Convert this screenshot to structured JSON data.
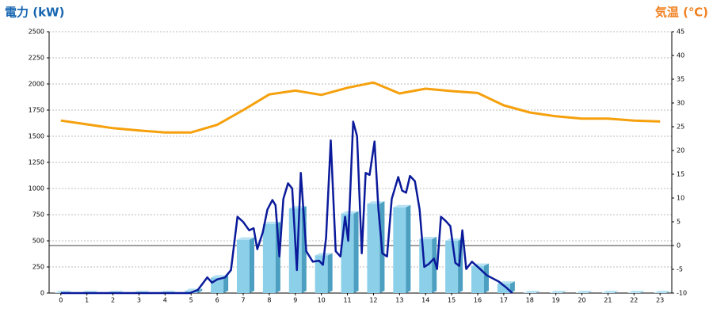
{
  "chart_data": {
    "type": "bar-line",
    "y_label": "電力 (kW)",
    "y2_label": "気温 (℃)",
    "categories": [
      "0",
      "1",
      "2",
      "3",
      "4",
      "5",
      "6",
      "7",
      "8",
      "9",
      "10",
      "11",
      "12",
      "13",
      "14",
      "15",
      "16",
      "17",
      "18",
      "19",
      "20",
      "21",
      "22",
      "23"
    ],
    "xlim": [
      -0.45,
      23.45
    ],
    "ylim": [
      0,
      2500
    ],
    "yticks": [
      0,
      250,
      500,
      750,
      1000,
      1250,
      1500,
      1750,
      2000,
      2250,
      2500
    ],
    "y2lim": [
      -10,
      45
    ],
    "y2ticks": [
      -10,
      -5,
      0,
      5,
      10,
      15,
      20,
      25,
      30,
      35,
      40,
      45
    ],
    "grid": true,
    "bars": {
      "color": "#8ccfe9",
      "values": [
        0,
        0,
        0,
        0,
        0,
        20,
        150,
        510,
        660,
        810,
        360,
        760,
        855,
        820,
        515,
        500,
        260,
        90,
        0,
        0,
        0,
        0,
        0,
        0
      ]
    },
    "series": [
      {
        "type": "line",
        "color": "#f5a00c",
        "axis": "y2",
        "values": [
          26.3,
          25.5,
          24.7,
          24.2,
          23.8,
          23.8,
          25.4,
          28.5,
          31.8,
          32.6,
          31.7,
          33.2,
          34.3,
          32,
          33,
          32.5,
          32.1,
          29.5,
          28,
          27.2,
          26.7,
          26.7,
          26.3,
          26.1
        ]
      },
      {
        "type": "line",
        "color": "#0a1a9a",
        "x": [
          0,
          4.95,
          5.26,
          5.62,
          5.8,
          6.0,
          6.3,
          6.53,
          6.78,
          7.0,
          7.23,
          7.4,
          7.54,
          7.75,
          7.93,
          8.12,
          8.24,
          8.39,
          8.54,
          8.72,
          8.88,
          9.06,
          9.21,
          9.42,
          9.67,
          9.91,
          10.06,
          10.18,
          10.36,
          10.55,
          10.73,
          10.91,
          11.03,
          11.22,
          11.37,
          11.55,
          11.7,
          11.85,
          12.04,
          12.19,
          12.34,
          12.52,
          12.7,
          12.95,
          13.1,
          13.25,
          13.4,
          13.59,
          13.77,
          13.95,
          14.13,
          14.32,
          14.44,
          14.59,
          14.77,
          14.95,
          15.14,
          15.29,
          15.41,
          15.56,
          15.78,
          16.05,
          16.35,
          16.81,
          17.11,
          17.33
        ],
        "values": [
          0,
          0,
          30,
          150,
          100,
          130,
          150,
          220,
          730,
          680,
          600,
          620,
          420,
          580,
          800,
          890,
          840,
          350,
          900,
          1050,
          1000,
          220,
          1150,
          400,
          300,
          310,
          270,
          530,
          1460,
          400,
          350,
          730,
          500,
          1640,
          1500,
          380,
          1150,
          1130,
          1450,
          800,
          380,
          350,
          900,
          1110,
          980,
          960,
          1120,
          1070,
          800,
          250,
          280,
          330,
          230,
          730,
          690,
          640,
          290,
          260,
          600,
          230,
          300,
          240,
          170,
          110,
          50,
          0
        ]
      }
    ]
  }
}
